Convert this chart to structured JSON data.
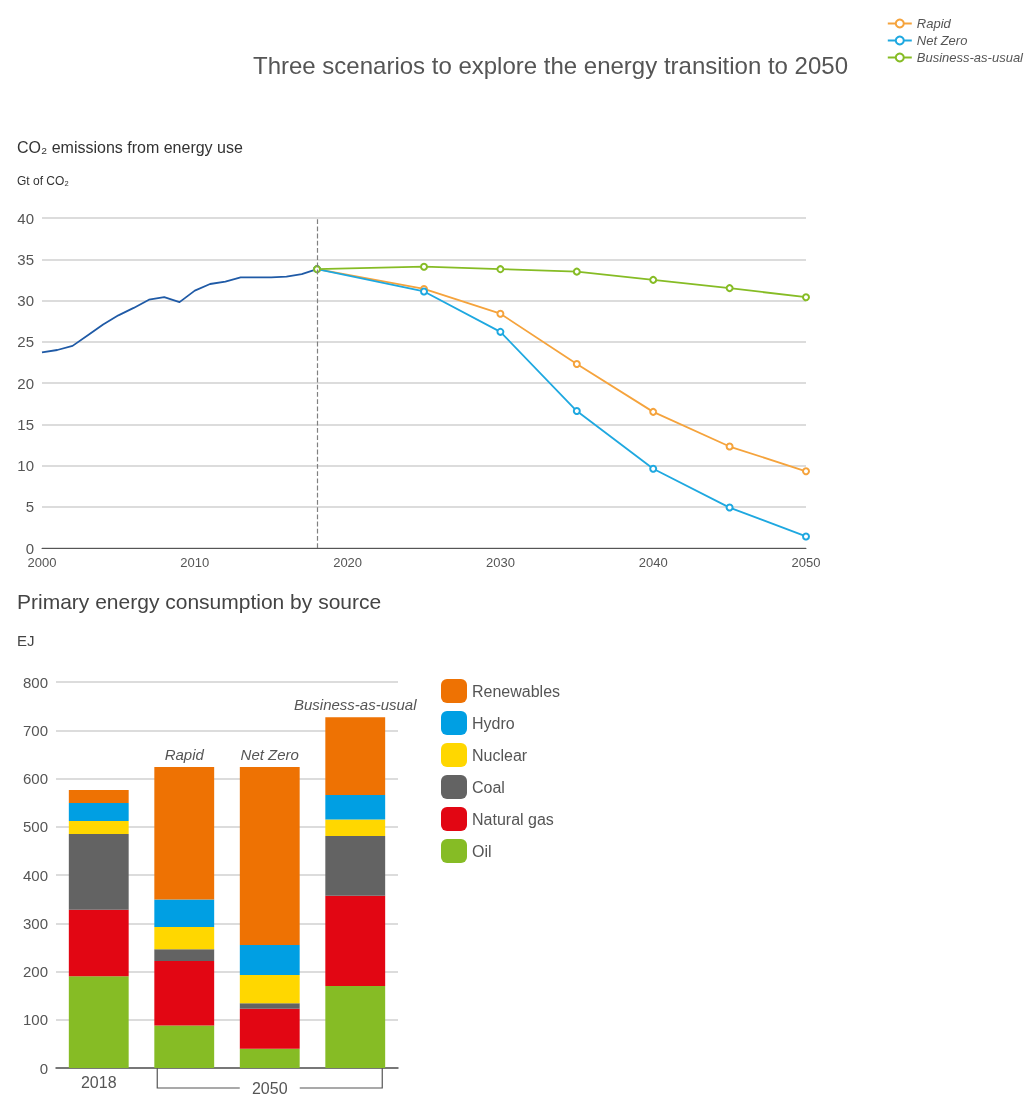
{
  "chart_data": [
    {
      "type": "line",
      "title": "Three scenarios to explore the energy transition to 2050",
      "subtitle": "CO₂ emissions from energy use",
      "ylabel": "Gt of CO₂",
      "xlim": [
        2000,
        2050
      ],
      "xticks": [
        2000,
        2010,
        2020,
        2030,
        2040,
        2050
      ],
      "ylim": [
        0,
        40
      ],
      "yticks": [
        0,
        5,
        10,
        15,
        20,
        25,
        30,
        35,
        40
      ],
      "grid": "y",
      "legend": "top right",
      "marker": "circle",
      "ref_lines": [
        {
          "axis": "x",
          "value": 2018,
          "color": "#808080",
          "line_style": "dashed"
        }
      ],
      "series": [
        {
          "color": "#1f5aa6",
          "marker": "none",
          "x": [
            2000,
            2001,
            2002,
            2003,
            2004,
            2005,
            2006,
            2007,
            2008,
            2009,
            2010,
            2011,
            2012,
            2013,
            2014,
            2015,
            2016,
            2017,
            2018
          ],
          "values": [
            23.7,
            24.0,
            24.5,
            25.8,
            27.1,
            28.2,
            29.1,
            30.1,
            30.4,
            29.8,
            31.2,
            32.0,
            32.3,
            32.8,
            32.8,
            32.8,
            32.9,
            33.2,
            33.8
          ]
        },
        {
          "name": "Rapid",
          "color": "#f5a33c",
          "x": [
            2018,
            2025,
            2030,
            2035,
            2040,
            2045,
            2050
          ],
          "values": [
            33.8,
            31.4,
            28.4,
            22.3,
            16.5,
            12.3,
            9.3
          ]
        },
        {
          "name": "Net Zero",
          "color": "#1ea8e0",
          "x": [
            2018,
            2025,
            2030,
            2035,
            2040,
            2045,
            2050
          ],
          "values": [
            33.8,
            31.1,
            26.2,
            16.6,
            9.6,
            4.9,
            1.4
          ]
        },
        {
          "name": "Business-as-usual",
          "color": "#86bc25",
          "x": [
            2018,
            2025,
            2030,
            2035,
            2040,
            2045,
            2050
          ],
          "values": [
            33.8,
            34.1,
            33.8,
            33.5,
            32.5,
            31.5,
            30.4
          ]
        }
      ]
    },
    {
      "type": "bar",
      "stacked": true,
      "title": "Primary energy consumption by source",
      "ylabel": "EJ",
      "categories": [
        "2018",
        "Rapid",
        "Net Zero",
        "Business-as-usual"
      ],
      "annotations": [
        {
          "text": "2050",
          "y": 0
        }
      ],
      "ylim": [
        0,
        800
      ],
      "yticks": [
        0,
        100,
        200,
        300,
        400,
        500,
        600,
        700,
        800
      ],
      "grid": "y",
      "legend": "right",
      "series": [
        {
          "name": "Oil",
          "color": "#86bc25",
          "values": [
            190,
            88,
            40,
            170
          ]
        },
        {
          "name": "Natural gas",
          "color": "#e20613",
          "values": [
            138,
            134,
            83,
            187
          ]
        },
        {
          "name": "Coal",
          "color": "#636363",
          "values": [
            157,
            24,
            11,
            124
          ]
        },
        {
          "name": "Nuclear",
          "color": "#ffd700",
          "values": [
            27,
            46,
            59,
            34
          ]
        },
        {
          "name": "Hydro",
          "color": "#009fe3",
          "values": [
            37,
            57,
            62,
            51
          ]
        },
        {
          "name": "Renewables",
          "color": "#ee7203",
          "values": [
            27,
            275,
            369,
            161
          ]
        }
      ]
    }
  ]
}
